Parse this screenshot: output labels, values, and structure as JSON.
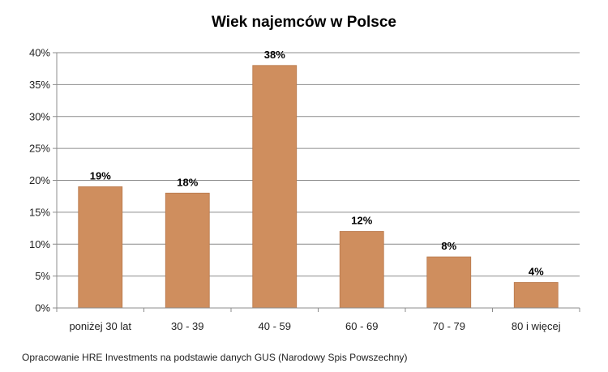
{
  "chart_data": {
    "type": "bar",
    "title": "Wiek najemców w Polsce",
    "categories": [
      "poniżej 30 lat",
      "30 - 39",
      "40 - 59",
      "60 - 69",
      "70 - 79",
      "80 i więcej"
    ],
    "values": [
      19,
      18,
      38,
      12,
      8,
      4
    ],
    "data_labels": [
      "19%",
      "18%",
      "38%",
      "12%",
      "8%",
      "4%"
    ],
    "ylim": [
      0,
      40
    ],
    "yticks": [
      "0%",
      "5%",
      "10%",
      "15%",
      "20%",
      "25%",
      "30%",
      "35%",
      "40%"
    ],
    "grid": true,
    "legend": "none",
    "bar_color": "#CF8E5E"
  },
  "source_note": "Opracowanie HRE Investments na podstawie danych GUS (Narodowy Spis Powszechny)"
}
